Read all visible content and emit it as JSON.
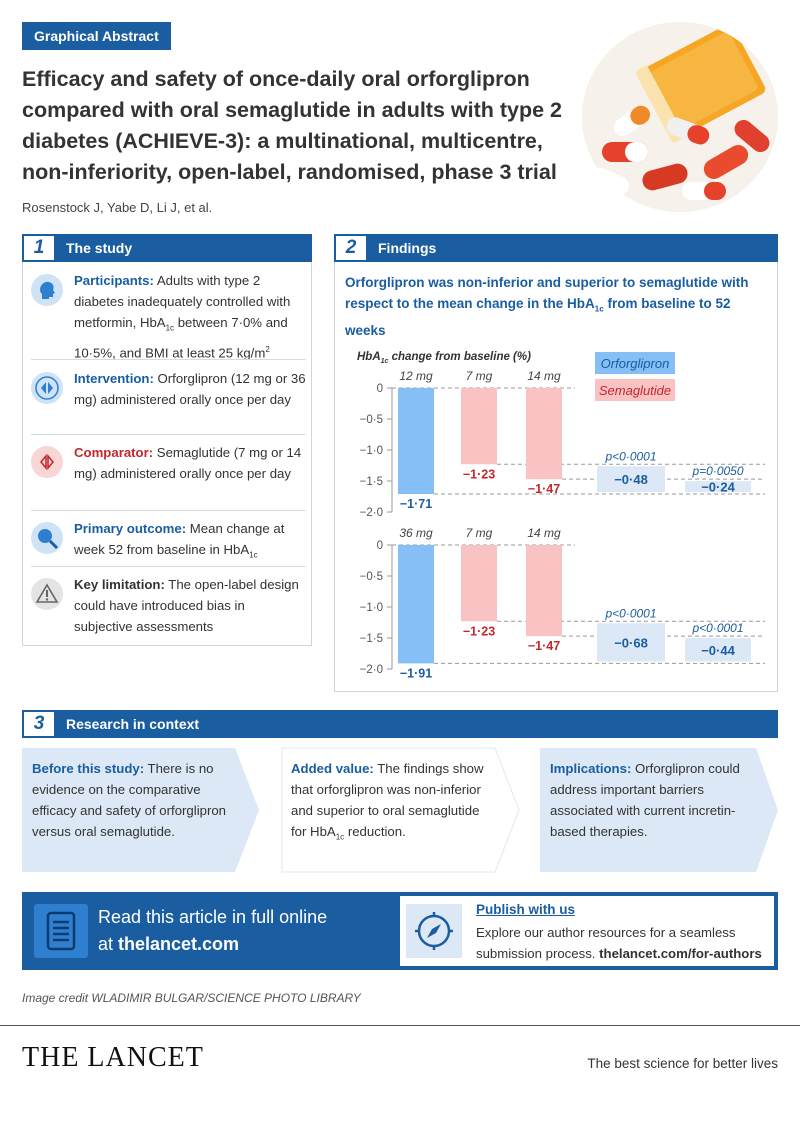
{
  "badge": "Graphical Abstract",
  "title": "Efficacy and safety of once-daily oral orforglipron compared with oral semaglutide in adults with type 2 diabetes (ACHIEVE-3): a multinational, multicentre, non-inferiority, open-label, randomised, phase 3 trial",
  "authors": "Rosenstock J, Yabe D, Li J, et al.",
  "sections": {
    "study": {
      "num": "1",
      "label": "The study"
    },
    "findings": {
      "num": "2",
      "label": "Findings"
    },
    "context": {
      "num": "3",
      "label": "Research in context"
    }
  },
  "study": {
    "participants_label": "Participants:",
    "participants_text_1": " Adults with type 2 diabetes inadequately controlled with metformin, HbA",
    "participants_sub": "1c",
    "participants_text_2": " between 7·0% and 10·5%, and BMI at least 25 kg/m",
    "participants_sup": "2",
    "intervention_label": "Intervention:",
    "intervention_text": " Orforglipron (12 mg or 36 mg) administered orally once per day",
    "comparator_label": "Comparator:",
    "comparator_text": " Semaglutide (7 mg or 14 mg) administered orally once per day",
    "outcome_label": "Primary outcome:",
    "outcome_text": " Mean change at week 52 from baseline in HbA",
    "outcome_sub": "1c",
    "limitation_label": "Key limitation:",
    "limitation_text": " The open-label design could have introduced bias in subjective assessments"
  },
  "findings": {
    "headline_1": "Orforglipron was non-inferior and superior to semaglutide with respect to the mean change in the HbA",
    "headline_sub": "1c",
    "headline_2": " from baseline to 52 weeks"
  },
  "chart_data": {
    "type": "bar",
    "ylabel": "HbA1c change from baseline (%)",
    "legend": [
      "Orforglipron",
      "Semaglutide"
    ],
    "colors": {
      "orforglipron": "#85bff5",
      "semaglutide": "#f9c3c3",
      "ortext": "#1a5da0",
      "semtext": "#c3272b"
    },
    "ylim": [
      -2.0,
      0
    ],
    "yticks": [
      "0",
      "−0·5",
      "−1·0",
      "−1·5",
      "−2·0"
    ],
    "panels": [
      {
        "categories": [
          "12 mg",
          "7 mg",
          "14 mg"
        ],
        "values": [
          -1.71,
          -1.23,
          -1.47
        ],
        "value_labels": [
          "−1·71",
          "−1·23",
          "−1·47"
        ],
        "diffs": [
          {
            "p": "p<0·0001",
            "value": -0.48,
            "label": "−0·48"
          },
          {
            "p": "p=0·0050",
            "value": -0.24,
            "label": "−0·24"
          }
        ]
      },
      {
        "categories": [
          "36 mg",
          "7 mg",
          "14 mg"
        ],
        "values": [
          -1.91,
          -1.23,
          -1.47
        ],
        "value_labels": [
          "−1·91",
          "−1·23",
          "−1·47"
        ],
        "diffs": [
          {
            "p": "p<0·0001",
            "value": -0.68,
            "label": "−0·68"
          },
          {
            "p": "p<0·0001",
            "value": -0.44,
            "label": "−0·44"
          }
        ]
      }
    ]
  },
  "context": {
    "before_label": "Before this study:",
    "before_text": " There is no evidence on the comparative efficacy and safety of orforglipron versus oral semaglutide.",
    "added_label": "Added value:",
    "added_text_1": " The findings show that orforglipron was non-inferior and superior to oral semaglutide for HbA",
    "added_sub": "1c",
    "added_text_2": " reduction.",
    "impl_label": "Implications:",
    "impl_text": " Orforglipron could address important barriers associated with current incretin-based therapies."
  },
  "footer": {
    "read_line1": "Read this article in full online",
    "read_prefix": "at ",
    "read_link": "thelancet.com",
    "publish_head": "Publish with us",
    "publish_text": "Explore our author resources for a seamless submission process. ",
    "publish_link": "thelancet.com/for-authors"
  },
  "credit": "Image credit WLADIMIR BULGAR/SCIENCE PHOTO LIBRARY",
  "brand": "THE LANCET",
  "tagline": "The best science for better lives"
}
